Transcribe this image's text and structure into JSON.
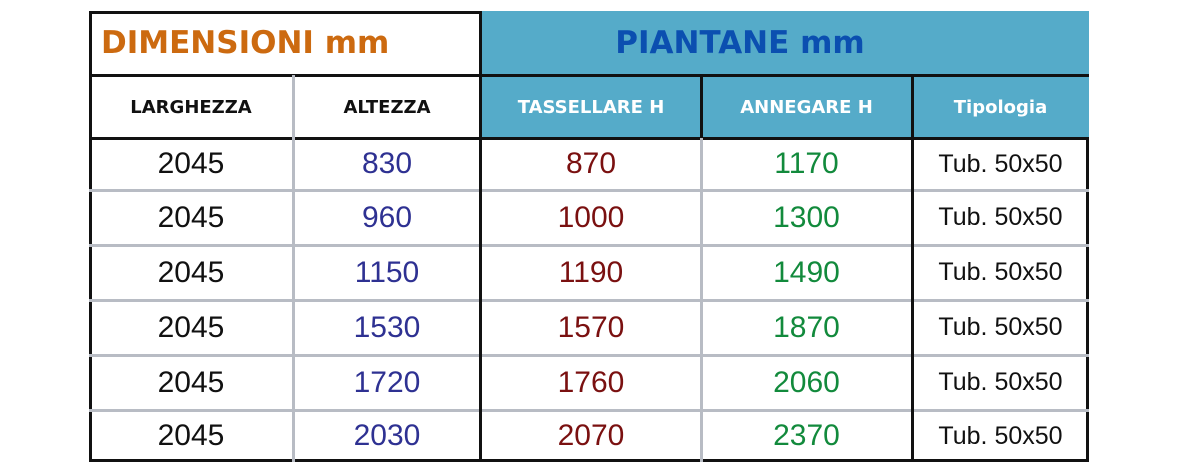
{
  "header": {
    "dimensioni": "DIMENSIONI mm",
    "piantane": "PIANTANE mm"
  },
  "columns": [
    "LARGHEZZA",
    "ALTEZZA",
    "TASSELLARE H",
    "ANNEGARE H",
    "Tipologia"
  ],
  "colors": {
    "dimensioni": "#cc6a10",
    "piantane": "#0b4fb0",
    "header_bg": "#55abc9",
    "altezza": "#2e3192",
    "tassellare": "#7a1010",
    "annegare": "#128a3c"
  },
  "rows": [
    [
      "2045",
      "830",
      "870",
      "1170",
      "Tub. 50x50"
    ],
    [
      "2045",
      "960",
      "1000",
      "1300",
      "Tub. 50x50"
    ],
    [
      "2045",
      "1150",
      "1190",
      "1490",
      "Tub. 50x50"
    ],
    [
      "2045",
      "1530",
      "1570",
      "1870",
      "Tub. 50x50"
    ],
    [
      "2045",
      "1720",
      "1760",
      "2060",
      "Tub. 50x50"
    ],
    [
      "2045",
      "2030",
      "2070",
      "2370",
      "Tub. 50x50"
    ]
  ]
}
